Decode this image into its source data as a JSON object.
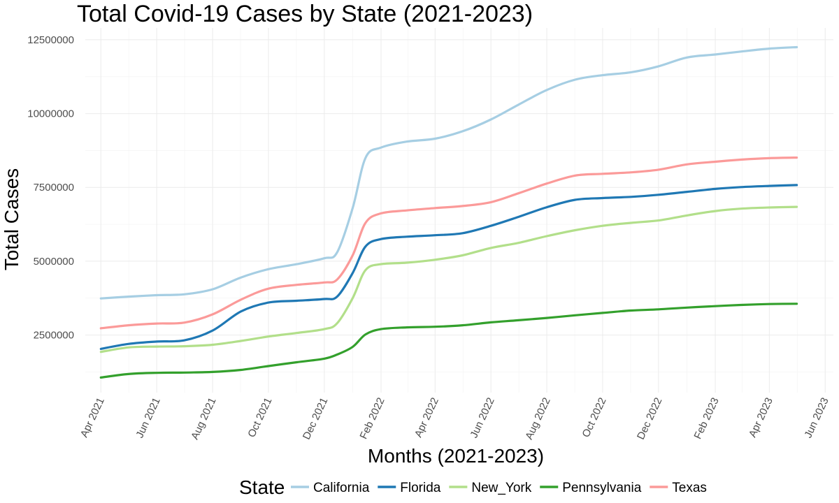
{
  "chart_data": {
    "type": "line",
    "title": "Total Covid-19 Cases by State (2021-2023)",
    "xlabel": "Months (2021-2023)",
    "ylabel": "Total Cases",
    "legend_title": "State",
    "legend_position": "bottom",
    "grid": true,
    "xlim": [
      "2021-03-15",
      "2023-06-10"
    ],
    "ylim": [
      550000,
      12900000
    ],
    "y_ticks": [
      2500000,
      5000000,
      7500000,
      10000000,
      12500000
    ],
    "y_tick_labels": [
      "2500000",
      "5000000",
      "7500000",
      "10000000",
      "12500000"
    ],
    "x_ticks": [
      "2021-04-01",
      "2021-06-01",
      "2021-08-01",
      "2021-10-01",
      "2021-12-01",
      "2022-02-01",
      "2022-04-01",
      "2022-06-01",
      "2022-08-01",
      "2022-10-01",
      "2022-12-01",
      "2023-02-01",
      "2023-04-01",
      "2023-06-01"
    ],
    "x_tick_labels": [
      "Apr 2021",
      "Jun 2021",
      "Aug 2021",
      "Oct 2021",
      "Dec 2021",
      "Feb 2022",
      "Apr 2022",
      "Jun 2022",
      "Aug 2022",
      "Oct 2022",
      "Dec 2022",
      "Feb 2023",
      "Apr 2023",
      "Jun 2023"
    ],
    "x": [
      "2021-04-01",
      "2021-05-01",
      "2021-06-01",
      "2021-07-01",
      "2021-08-01",
      "2021-09-01",
      "2021-10-01",
      "2021-11-01",
      "2021-12-01",
      "2021-12-15",
      "2022-01-01",
      "2022-01-15",
      "2022-02-01",
      "2022-03-01",
      "2022-04-01",
      "2022-05-01",
      "2022-06-01",
      "2022-07-01",
      "2022-08-01",
      "2022-09-01",
      "2022-10-01",
      "2022-11-01",
      "2022-12-01",
      "2023-01-01",
      "2023-02-01",
      "2023-03-01",
      "2023-04-01",
      "2023-05-01"
    ],
    "series": [
      {
        "name": "California",
        "color": "#a6cee3",
        "values": [
          3740000,
          3800000,
          3850000,
          3880000,
          4050000,
          4450000,
          4730000,
          4900000,
          5100000,
          5300000,
          6800000,
          8500000,
          8850000,
          9050000,
          9150000,
          9400000,
          9800000,
          10300000,
          10800000,
          11150000,
          11300000,
          11400000,
          11600000,
          11900000,
          12000000,
          12100000,
          12200000,
          12250000
        ]
      },
      {
        "name": "Florida",
        "color": "#1f78b4",
        "values": [
          2030000,
          2200000,
          2280000,
          2320000,
          2650000,
          3300000,
          3600000,
          3660000,
          3720000,
          3800000,
          4600000,
          5500000,
          5750000,
          5830000,
          5880000,
          5950000,
          6200000,
          6500000,
          6830000,
          7080000,
          7140000,
          7180000,
          7250000,
          7350000,
          7450000,
          7510000,
          7550000,
          7580000
        ]
      },
      {
        "name": "New_York",
        "color": "#b2df8a",
        "values": [
          1930000,
          2080000,
          2110000,
          2120000,
          2170000,
          2300000,
          2450000,
          2570000,
          2700000,
          2900000,
          3750000,
          4700000,
          4900000,
          4950000,
          5050000,
          5200000,
          5450000,
          5620000,
          5850000,
          6050000,
          6200000,
          6300000,
          6380000,
          6550000,
          6700000,
          6780000,
          6820000,
          6840000
        ]
      },
      {
        "name": "Pennsylvania",
        "color": "#33a02c",
        "values": [
          1060000,
          1180000,
          1220000,
          1230000,
          1250000,
          1320000,
          1450000,
          1580000,
          1700000,
          1840000,
          2100000,
          2520000,
          2700000,
          2760000,
          2780000,
          2830000,
          2930000,
          3000000,
          3080000,
          3170000,
          3250000,
          3330000,
          3370000,
          3430000,
          3480000,
          3520000,
          3550000,
          3560000
        ]
      },
      {
        "name": "Texas",
        "color": "#fb9a99",
        "values": [
          2730000,
          2830000,
          2890000,
          2920000,
          3200000,
          3700000,
          4070000,
          4200000,
          4280000,
          4380000,
          5200000,
          6300000,
          6620000,
          6720000,
          6800000,
          6870000,
          7000000,
          7300000,
          7630000,
          7900000,
          7960000,
          8010000,
          8100000,
          8280000,
          8370000,
          8440000,
          8490000,
          8510000
        ]
      }
    ]
  }
}
